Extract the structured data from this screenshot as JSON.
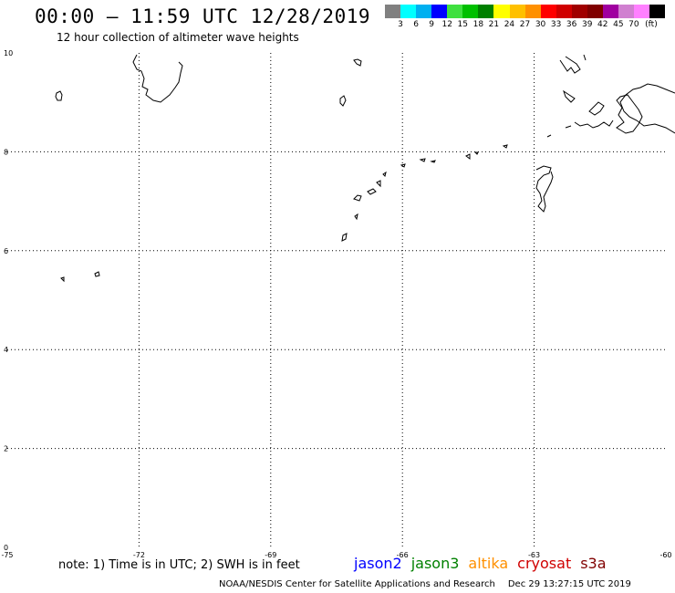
{
  "header": {
    "title": "00:00 – 11:59 UTC 12/28/2019",
    "subtitle": "12 hour collection of altimeter wave heights"
  },
  "legend": {
    "unit": "(ft)",
    "colors": [
      "#808080",
      "#00ffff",
      "#00b0f0",
      "#0000ff",
      "#40e040",
      "#00c000",
      "#008000",
      "#ffff00",
      "#ffc000",
      "#ff9000",
      "#ff0000",
      "#d00000",
      "#a00000",
      "#800000",
      "#a000a0",
      "#d080d0",
      "#ff80ff",
      "#000000"
    ],
    "labels": [
      "3",
      "6",
      "9",
      "12",
      "15",
      "18",
      "21",
      "24",
      "27",
      "30",
      "33",
      "36",
      "39",
      "42",
      "45",
      "70"
    ]
  },
  "map": {
    "lon_range": [
      -75,
      -60
    ],
    "lat_range": [
      0,
      10
    ],
    "lon_ticks": [
      -75,
      -72,
      -69,
      -66,
      -63,
      -60
    ],
    "lon_tick_labels": [
      "-75",
      "-72",
      "-69",
      "-66",
      "-63",
      "-60"
    ],
    "lat_ticks": [
      0,
      2,
      4,
      6,
      8,
      10
    ],
    "lat_tick_labels": [
      "0",
      "2",
      "4",
      "6",
      "8",
      "10"
    ],
    "grid": "dotted"
  },
  "note": "note: 1) Time is in UTC; 2) SWH is in feet",
  "satellites": [
    {
      "name": "jason2",
      "color": "#0000ff"
    },
    {
      "name": "jason3",
      "color": "#008000"
    },
    {
      "name": "altika",
      "color": "#ff9000"
    },
    {
      "name": "cryosat",
      "color": "#d00000"
    },
    {
      "name": "s3a",
      "color": "#800000"
    }
  ],
  "footer": {
    "credit": "NOAA/NESDIS Center for Satellite Applications and Research",
    "timestamp": "Dec 29 13:27:15 UTC 2019"
  }
}
